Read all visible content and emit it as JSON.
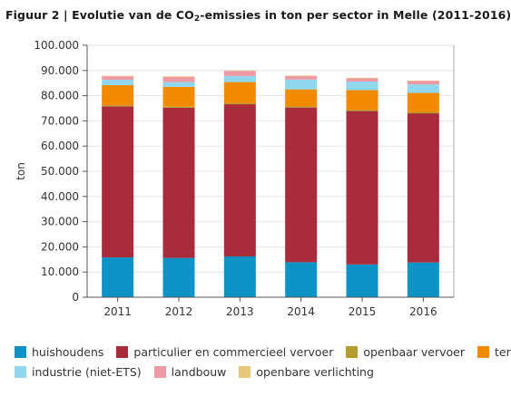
{
  "title": {
    "prefix": "Figuur 2 | Evolutie van de CO",
    "subscript": "2",
    "suffix": "-emissies in ton per sector in Melle (2011-2016)"
  },
  "chart_data": {
    "type": "bar",
    "stacked": true,
    "ylabel": "ton",
    "xlabel": "",
    "ylim": [
      0,
      100000
    ],
    "yticks": [
      "0",
      "10.000",
      "20.000",
      "30.000",
      "40.000",
      "50.000",
      "60.000",
      "70.000",
      "80.000",
      "90.000",
      "100.000"
    ],
    "categories": [
      "2011",
      "2012",
      "2013",
      "2014",
      "2015",
      "2016"
    ],
    "grid": true,
    "legend_position": "bottom",
    "series": [
      {
        "name": "huishoudens",
        "color": "#0e93c6",
        "values": [
          15800,
          15600,
          16200,
          13900,
          13000,
          13800
        ]
      },
      {
        "name": "particulier en commercieel vervoer",
        "color": "#a82c3c",
        "values": [
          60000,
          59600,
          60400,
          61400,
          60900,
          59200
        ]
      },
      {
        "name": "openbaar vervoer",
        "color": "#b39b2e",
        "values": [
          400,
          400,
          400,
          400,
          400,
          400
        ]
      },
      {
        "name": "tertiair",
        "color": "#f28a00",
        "values": [
          8000,
          7900,
          8400,
          6800,
          7900,
          7700
        ]
      },
      {
        "name": "industrie (niet-ETS)",
        "color": "#8fd6ee",
        "values": [
          2100,
          1900,
          2400,
          3900,
          3400,
          3400
        ]
      },
      {
        "name": "landbouw",
        "color": "#ee9aa5",
        "values": [
          1400,
          2100,
          2000,
          1400,
          1300,
          1300
        ]
      },
      {
        "name": "openbare verlichting",
        "color": "#e6c878",
        "values": [
          200,
          200,
          200,
          200,
          200,
          200
        ]
      }
    ]
  }
}
